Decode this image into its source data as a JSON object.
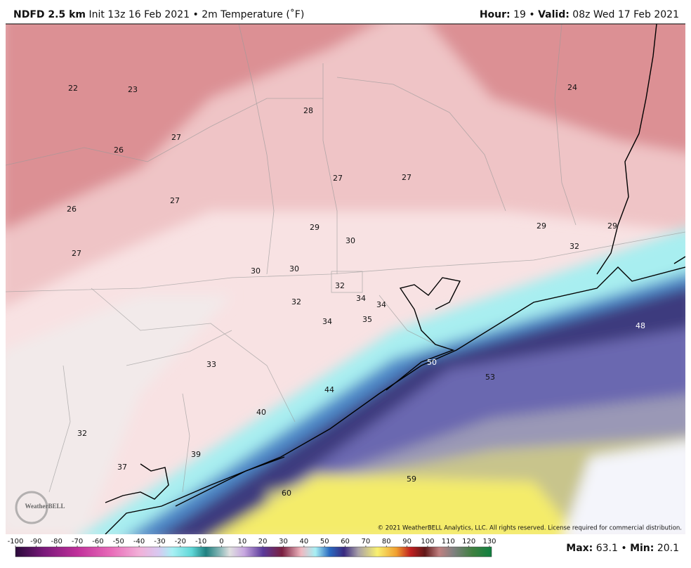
{
  "header": {
    "model": "NDFD 2.5 km",
    "init": "Init 13z 16 Feb 2021",
    "separator": "•",
    "product": "2m Temperature (˚F)",
    "hour_label": "Hour:",
    "hour": "19",
    "valid_label": "Valid:",
    "valid": "08z Wed 17 Feb 2021"
  },
  "map": {
    "labels": [
      22,
      23,
      28,
      24,
      27,
      26,
      27,
      27,
      26,
      27,
      29,
      30,
      29,
      29,
      32,
      27,
      30,
      30,
      32,
      34,
      34,
      32,
      34,
      35,
      48,
      33,
      50,
      53,
      44,
      40,
      32,
      39,
      37,
      59,
      60
    ],
    "logo": "WeatherBELL",
    "copyright": "© 2021 WeatherBELL Analytics, LLC. All rights reserved. License required for commercial distribution."
  },
  "colorbar": {
    "ticks": [
      -100,
      -90,
      -80,
      -70,
      -60,
      -50,
      -40,
      -30,
      -20,
      -10,
      0,
      10,
      20,
      30,
      40,
      50,
      60,
      70,
      80,
      90,
      100,
      110,
      120,
      130
    ]
  },
  "footer": {
    "max_label": "Max:",
    "max": 63.1,
    "min_label": "Min:",
    "min": 20.1
  }
}
